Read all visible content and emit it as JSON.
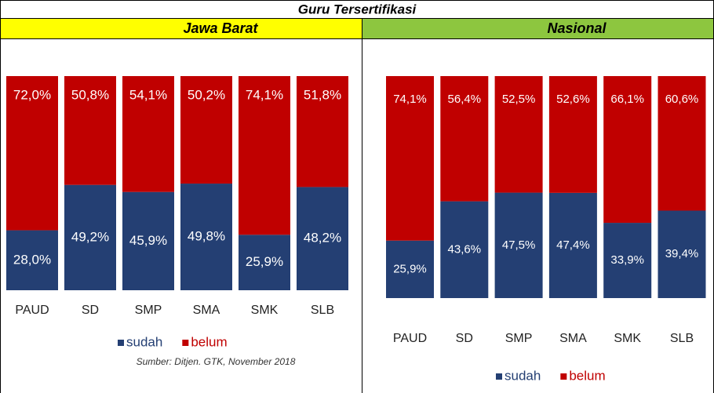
{
  "title": "Guru Tersertifikasi",
  "chart_data": [
    {
      "type": "bar",
      "stacked": true,
      "title": "Jawa Barat",
      "categories": [
        "PAUD",
        "SD",
        "SMP",
        "SMA",
        "SMK",
        "SLB"
      ],
      "series": [
        {
          "name": "sudah",
          "color": "#243f73",
          "values": [
            28.0,
            49.2,
            45.9,
            49.8,
            25.9,
            48.2
          ],
          "value_labels": [
            "28,0%",
            "49,2%",
            "45,9%",
            "49,8%",
            "25,9%",
            "48,2%"
          ]
        },
        {
          "name": "belum",
          "color": "#c00000",
          "values": [
            72.0,
            50.8,
            54.1,
            50.2,
            74.1,
            51.8
          ],
          "value_labels": [
            "72,0%",
            "50,8%",
            "54,1%",
            "50,2%",
            "74,1%",
            "51,8%"
          ]
        }
      ],
      "source": "Sumber: Ditjen. GTK, November 2018"
    },
    {
      "type": "bar",
      "stacked": true,
      "title": "Nasional",
      "categories": [
        "PAUD",
        "SD",
        "SMP",
        "SMA",
        "SMK",
        "SLB"
      ],
      "series": [
        {
          "name": "sudah",
          "color": "#243f73",
          "values": [
            25.9,
            43.6,
            47.5,
            47.4,
            33.9,
            39.4
          ],
          "value_labels": [
            "25,9%",
            "43,6%",
            "47,5%",
            "47,4%",
            "33,9%",
            "39,4%"
          ]
        },
        {
          "name": "belum",
          "color": "#c00000",
          "values": [
            74.1,
            56.4,
            52.5,
            52.6,
            66.1,
            60.6
          ],
          "value_labels": [
            "74,1%",
            "56,4%",
            "52,5%",
            "52,6%",
            "66,1%",
            "60,6%"
          ]
        }
      ]
    }
  ]
}
